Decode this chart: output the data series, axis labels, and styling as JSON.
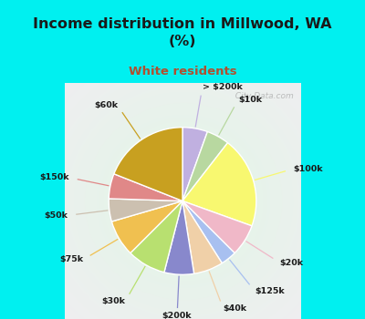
{
  "title": "Income distribution in Millwood, WA\n(%)",
  "subtitle": "White residents",
  "title_color": "#1a1a1a",
  "subtitle_color": "#b05030",
  "bg_cyan": "#00f0f0",
  "bg_chart": "#dff0e8",
  "watermark": "  City-Data.com",
  "labels": [
    "> $200k",
    "$10k",
    "$100k",
    "$20k",
    "$125k",
    "$40k",
    "$200k",
    "$30k",
    "$75k",
    "$50k",
    "$150k",
    "$60k"
  ],
  "values": [
    5.5,
    5.0,
    20.0,
    7.0,
    3.5,
    6.5,
    6.5,
    8.5,
    8.0,
    5.0,
    5.5,
    19.0
  ],
  "colors": [
    "#c0b0e0",
    "#b8d8a0",
    "#f8f870",
    "#f0b8c8",
    "#a8c0f0",
    "#f0d0a8",
    "#8888cc",
    "#b8e070",
    "#f0c050",
    "#ccc0b0",
    "#e08888",
    "#c8a020"
  ],
  "line_colors": [
    "#c0b0e0",
    "#b8d8a0",
    "#f8f870",
    "#f0b8c8",
    "#a8c0f0",
    "#f0d0a8",
    "#8888cc",
    "#b8e070",
    "#f0c050",
    "#ccc0b0",
    "#e08888",
    "#c8a020"
  ],
  "startangle": 90,
  "figsize": [
    4.0,
    3.5
  ],
  "dpi": 100
}
